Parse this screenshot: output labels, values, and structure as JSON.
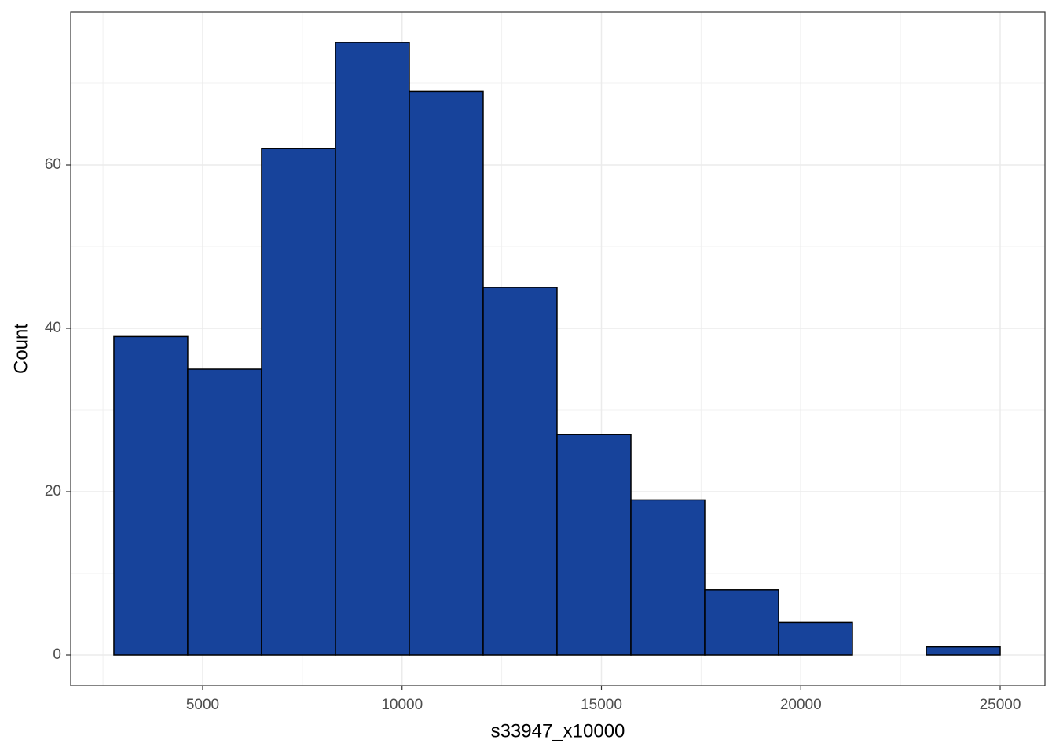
{
  "chart_data": {
    "type": "histogram",
    "x_label": "s33947_x10000",
    "y_label": "Count",
    "bins": [
      2773,
      4625,
      6477,
      8330,
      10182,
      12034,
      13886,
      15739,
      17591,
      19443,
      21295,
      23148,
      25000
    ],
    "values": [
      39,
      35,
      62,
      75,
      69,
      45,
      27,
      19,
      8,
      4,
      0,
      1
    ],
    "color": "#17439b",
    "edge_color": "#000000",
    "xlim": [
      1690,
      26123
    ],
    "ylim": [
      -3.75,
      78.75
    ],
    "xticks": [
      5000,
      10000,
      15000,
      20000,
      25000
    ],
    "yticks": [
      0,
      20,
      40,
      60
    ],
    "xminor": [
      2500,
      7500,
      12500,
      17500,
      22500
    ],
    "yminor": [
      10,
      30,
      50,
      70
    ],
    "grid": true
  }
}
